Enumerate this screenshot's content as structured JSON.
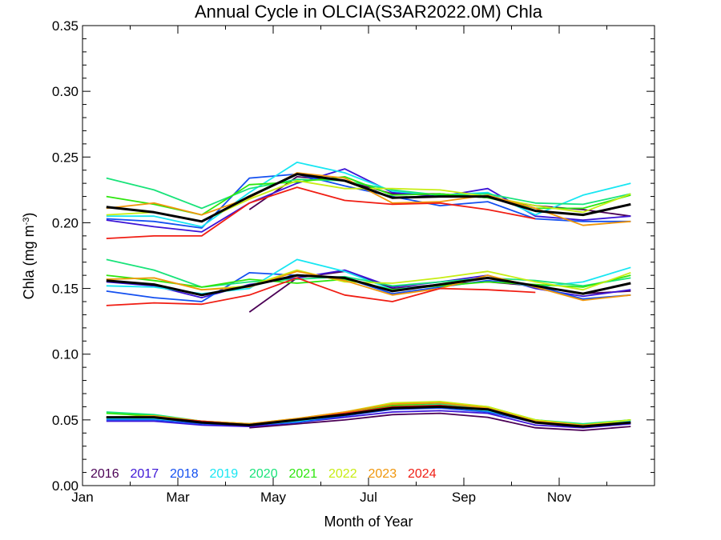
{
  "chart_data": {
    "type": "line",
    "title": "Annual Cycle in OLCIA(S3AR2022.0M) Chla",
    "xlabel": "Month of Year",
    "ylabel": "Chla (mg m",
    "ylabel_sup": "-3",
    "ylabel_close": ")",
    "xlim": [
      0,
      12
    ],
    "ylim": [
      0,
      0.35
    ],
    "x_ticks": [
      0,
      2,
      4,
      6,
      8,
      10
    ],
    "x_tick_labels": [
      "Jan",
      "Mar",
      "May",
      "Jul",
      "Sep",
      "Nov"
    ],
    "y_ticks": [
      0,
      0.05,
      0.1,
      0.15,
      0.2,
      0.25,
      0.3,
      0.35
    ],
    "y_tick_labels": [
      "0.00",
      "0.05",
      "0.10",
      "0.15",
      "0.20",
      "0.25",
      "0.30",
      "0.35"
    ],
    "x": [
      0.5,
      1.5,
      2.5,
      3.5,
      4.5,
      5.5,
      6.5,
      7.5,
      8.5,
      9.5,
      10.5,
      11.5
    ],
    "legend_placement": "bottom-left",
    "groups": [
      "upper",
      "middle",
      "lower"
    ],
    "series": [
      {
        "name": "2016",
        "color": "#4b0055",
        "upper": [
          null,
          null,
          null,
          0.21,
          0.235,
          0.232,
          0.222,
          0.222,
          0.219,
          0.213,
          0.21,
          0.205
        ],
        "middle": [
          null,
          null,
          null,
          0.132,
          0.158,
          0.163,
          0.15,
          0.153,
          0.155,
          0.152,
          0.146,
          0.148
        ],
        "lower": [
          null,
          null,
          null,
          0.044,
          0.047,
          0.05,
          0.054,
          0.055,
          0.052,
          0.044,
          0.042,
          0.045
        ]
      },
      {
        "name": "2017",
        "color": "#3c14d6",
        "upper": [
          0.202,
          0.197,
          0.193,
          0.215,
          0.23,
          0.241,
          0.223,
          0.22,
          0.226,
          0.205,
          0.202,
          0.205
        ],
        "middle": [
          0.155,
          0.152,
          0.143,
          0.153,
          0.158,
          0.164,
          0.151,
          0.155,
          0.16,
          0.15,
          0.144,
          0.149
        ],
        "lower": [
          0.049,
          0.049,
          0.046,
          0.045,
          0.048,
          0.052,
          0.056,
          0.057,
          0.055,
          0.046,
          0.044,
          0.047
        ]
      },
      {
        "name": "2018",
        "color": "#1450f0",
        "upper": [
          0.203,
          0.201,
          0.196,
          0.234,
          0.237,
          0.228,
          0.22,
          0.213,
          0.216,
          0.203,
          0.201,
          0.201
        ],
        "middle": [
          0.148,
          0.143,
          0.14,
          0.162,
          0.16,
          0.158,
          0.146,
          0.151,
          0.156,
          0.152,
          0.142,
          0.145
        ],
        "lower": [
          0.05,
          0.05,
          0.047,
          0.046,
          0.048,
          0.053,
          0.058,
          0.059,
          0.056,
          0.048,
          0.045,
          0.048
        ]
      },
      {
        "name": "2019",
        "color": "#18e6f2",
        "upper": [
          0.205,
          0.205,
          0.197,
          0.223,
          0.246,
          0.238,
          0.224,
          0.221,
          0.223,
          0.206,
          0.221,
          0.23
        ],
        "middle": [
          0.152,
          0.151,
          0.146,
          0.15,
          0.172,
          0.163,
          0.149,
          0.153,
          0.158,
          0.151,
          0.155,
          0.166
        ],
        "lower": [
          0.051,
          0.051,
          0.048,
          0.046,
          0.049,
          0.054,
          0.059,
          0.06,
          0.057,
          0.049,
          0.046,
          0.049
        ]
      },
      {
        "name": "2020",
        "color": "#19e37a",
        "upper": [
          0.234,
          0.225,
          0.211,
          0.226,
          0.233,
          0.232,
          0.225,
          0.221,
          0.222,
          0.215,
          0.214,
          0.222
        ],
        "middle": [
          0.172,
          0.164,
          0.151,
          0.155,
          0.157,
          0.159,
          0.152,
          0.155,
          0.158,
          0.156,
          0.152,
          0.158
        ],
        "lower": [
          0.056,
          0.054,
          0.049,
          0.047,
          0.05,
          0.055,
          0.06,
          0.062,
          0.059,
          0.05,
          0.047,
          0.05
        ]
      },
      {
        "name": "2021",
        "color": "#2ee60e",
        "upper": [
          0.22,
          0.214,
          0.206,
          0.229,
          0.231,
          0.235,
          0.221,
          0.222,
          0.219,
          0.211,
          0.211,
          0.221
        ],
        "middle": [
          0.16,
          0.156,
          0.151,
          0.157,
          0.154,
          0.157,
          0.149,
          0.152,
          0.155,
          0.153,
          0.151,
          0.16
        ],
        "lower": [
          0.055,
          0.053,
          0.049,
          0.047,
          0.05,
          0.055,
          0.061,
          0.063,
          0.06,
          0.05,
          0.046,
          0.05
        ]
      },
      {
        "name": "2022",
        "color": "#c8ed14",
        "upper": [
          0.206,
          0.208,
          0.201,
          0.218,
          0.232,
          0.226,
          0.226,
          0.225,
          0.22,
          0.213,
          0.208,
          0.222
        ],
        "middle": [
          0.157,
          0.158,
          0.149,
          0.152,
          0.164,
          0.155,
          0.154,
          0.158,
          0.163,
          0.155,
          0.149,
          0.162
        ],
        "lower": [
          0.052,
          0.053,
          0.049,
          0.047,
          0.051,
          0.056,
          0.063,
          0.064,
          0.06,
          0.05,
          0.046,
          0.05
        ]
      },
      {
        "name": "2023",
        "color": "#f0960a",
        "upper": [
          0.211,
          0.215,
          0.206,
          0.219,
          0.238,
          0.234,
          0.215,
          0.216,
          0.221,
          0.211,
          0.198,
          0.201
        ],
        "middle": [
          0.157,
          0.158,
          0.149,
          0.151,
          0.163,
          0.156,
          0.145,
          0.15,
          0.16,
          0.151,
          0.141,
          0.145
        ],
        "lower": [
          0.052,
          0.053,
          0.049,
          0.047,
          0.051,
          0.056,
          0.062,
          0.063,
          0.059,
          0.049,
          0.046,
          0.048
        ]
      },
      {
        "name": "2024",
        "color": "#f01e14",
        "upper": [
          0.188,
          0.19,
          0.19,
          0.215,
          0.227,
          0.217,
          0.214,
          0.215,
          0.21,
          0.203,
          null,
          null
        ],
        "middle": [
          0.137,
          0.139,
          0.138,
          0.145,
          0.158,
          0.145,
          0.14,
          0.15,
          0.149,
          0.147,
          null,
          null
        ],
        "lower": [
          0.052,
          0.052,
          0.049,
          0.046,
          0.05,
          0.055,
          0.06,
          0.061,
          0.058,
          0.048,
          null,
          null
        ]
      },
      {
        "name": "",
        "color": "#000000",
        "width": 3,
        "legend": false,
        "upper": [
          0.212,
          0.208,
          0.201,
          0.22,
          0.237,
          0.232,
          0.219,
          0.22,
          0.22,
          0.209,
          0.206,
          0.214
        ],
        "middle": [
          0.156,
          0.153,
          0.145,
          0.152,
          0.16,
          0.158,
          0.148,
          0.153,
          0.158,
          0.152,
          0.146,
          0.154
        ],
        "lower": [
          0.052,
          0.052,
          0.048,
          0.046,
          0.05,
          0.054,
          0.059,
          0.06,
          0.058,
          0.048,
          0.045,
          0.048
        ]
      }
    ]
  }
}
